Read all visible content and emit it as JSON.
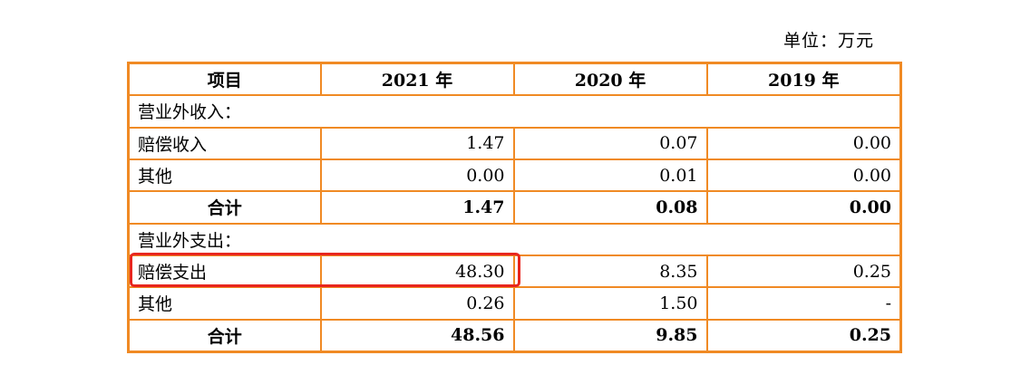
{
  "unit_label": "单位：万元",
  "headers": [
    "项目",
    "2021 年",
    "2020 年",
    "2019 年"
  ],
  "section_income": "营业外收入：",
  "income_rows": [
    {
      "label": "赔偿收入",
      "v2021": "1.47",
      "v2020": "0.07",
      "v2019": "0.00"
    },
    {
      "label": "其他",
      "v2021": "0.00",
      "v2020": "0.01",
      "v2019": "0.00"
    }
  ],
  "income_total": {
    "label": "合计",
    "v2021": "1.47",
    "v2020": "0.08",
    "v2019": "0.00"
  },
  "section_expense": "营业外支出：",
  "expense_rows": [
    {
      "label": "赔偿支出",
      "v2021": "48.30",
      "v2020": "8.35",
      "v2019": "0.25"
    },
    {
      "label": "其他",
      "v2021": "0.26",
      "v2020": "1.50",
      "v2019": "-"
    }
  ],
  "expense_total": {
    "label": "合计",
    "v2021": "48.56",
    "v2020": "9.85",
    "v2019": "0.25"
  },
  "colors": {
    "border": "#f08a24",
    "highlight": "#e8261e"
  }
}
